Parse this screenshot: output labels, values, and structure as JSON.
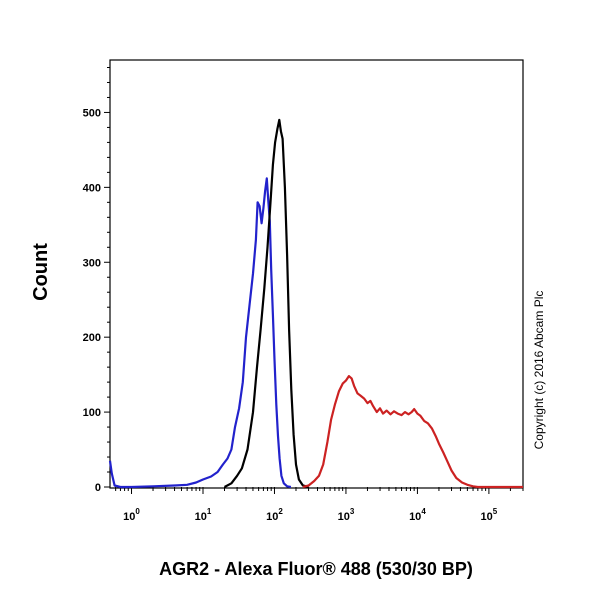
{
  "chart_data": {
    "type": "line",
    "title": "",
    "xlabel": "AGR2 - Alexa Fluor® 488 (530/30 BP)",
    "ylabel": "Count",
    "x_scale": "log",
    "xlim": [
      0.5,
      300000
    ],
    "ylim": [
      0,
      570
    ],
    "grid": false,
    "legend": "none",
    "y_ticks": [
      0,
      100,
      200,
      300,
      400,
      500
    ],
    "x_ticks": [
      {
        "value": 1,
        "base": "10",
        "exp": "0"
      },
      {
        "value": 10,
        "base": "10",
        "exp": "1"
      },
      {
        "value": 100,
        "base": "10",
        "exp": "2"
      },
      {
        "value": 1000,
        "base": "10",
        "exp": "3"
      },
      {
        "value": 10000,
        "base": "10",
        "exp": "4"
      },
      {
        "value": 100000,
        "base": "10",
        "exp": "5"
      }
    ],
    "series": [
      {
        "color": "#2222cc",
        "points": [
          [
            0.5,
            35
          ],
          [
            0.53,
            18
          ],
          [
            0.58,
            2
          ],
          [
            0.7,
            0
          ],
          [
            1,
            0
          ],
          [
            2,
            1
          ],
          [
            4,
            2
          ],
          [
            6,
            3
          ],
          [
            8,
            6
          ],
          [
            10,
            10
          ],
          [
            13,
            14
          ],
          [
            16,
            20
          ],
          [
            19,
            30
          ],
          [
            22,
            38
          ],
          [
            25,
            50
          ],
          [
            28,
            80
          ],
          [
            32,
            105
          ],
          [
            36,
            140
          ],
          [
            40,
            200
          ],
          [
            45,
            245
          ],
          [
            50,
            285
          ],
          [
            55,
            330
          ],
          [
            58,
            380
          ],
          [
            62,
            375
          ],
          [
            66,
            352
          ],
          [
            70,
            372
          ],
          [
            74,
            395
          ],
          [
            78,
            412
          ],
          [
            82,
            382
          ],
          [
            86,
            355
          ],
          [
            90,
            290
          ],
          [
            95,
            230
          ],
          [
            100,
            170
          ],
          [
            106,
            110
          ],
          [
            112,
            68
          ],
          [
            118,
            38
          ],
          [
            125,
            15
          ],
          [
            135,
            5
          ],
          [
            150,
            1
          ],
          [
            170,
            0
          ]
        ]
      },
      {
        "color": "#000000",
        "points": [
          [
            20,
            0
          ],
          [
            25,
            5
          ],
          [
            30,
            15
          ],
          [
            35,
            25
          ],
          [
            42,
            50
          ],
          [
            50,
            100
          ],
          [
            57,
            160
          ],
          [
            64,
            210
          ],
          [
            72,
            265
          ],
          [
            80,
            320
          ],
          [
            88,
            380
          ],
          [
            95,
            430
          ],
          [
            102,
            460
          ],
          [
            110,
            478
          ],
          [
            117,
            490
          ],
          [
            123,
            475
          ],
          [
            130,
            465
          ],
          [
            140,
            400
          ],
          [
            150,
            310
          ],
          [
            160,
            210
          ],
          [
            172,
            130
          ],
          [
            185,
            70
          ],
          [
            200,
            30
          ],
          [
            220,
            10
          ],
          [
            250,
            2
          ],
          [
            300,
            0
          ]
        ]
      },
      {
        "color": "#cc2222",
        "points": [
          [
            250,
            0
          ],
          [
            300,
            2
          ],
          [
            360,
            8
          ],
          [
            420,
            15
          ],
          [
            480,
            30
          ],
          [
            550,
            60
          ],
          [
            620,
            90
          ],
          [
            700,
            110
          ],
          [
            800,
            128
          ],
          [
            900,
            138
          ],
          [
            1000,
            142
          ],
          [
            1100,
            148
          ],
          [
            1200,
            145
          ],
          [
            1300,
            135
          ],
          [
            1450,
            125
          ],
          [
            1600,
            122
          ],
          [
            1800,
            118
          ],
          [
            2000,
            112
          ],
          [
            2200,
            115
          ],
          [
            2400,
            108
          ],
          [
            2700,
            100
          ],
          [
            3000,
            105
          ],
          [
            3300,
            98
          ],
          [
            3700,
            102
          ],
          [
            4200,
            97
          ],
          [
            4700,
            101
          ],
          [
            5300,
            98
          ],
          [
            6000,
            96
          ],
          [
            6700,
            100
          ],
          [
            7500,
            97
          ],
          [
            8300,
            100
          ],
          [
            9000,
            104
          ],
          [
            10000,
            98
          ],
          [
            11000,
            95
          ],
          [
            12500,
            88
          ],
          [
            14000,
            85
          ],
          [
            16000,
            78
          ],
          [
            18000,
            68
          ],
          [
            20000,
            58
          ],
          [
            23000,
            46
          ],
          [
            26000,
            35
          ],
          [
            30000,
            22
          ],
          [
            35000,
            12
          ],
          [
            42000,
            6
          ],
          [
            50000,
            3
          ],
          [
            60000,
            1
          ],
          [
            70000,
            0
          ],
          [
            300000,
            0
          ]
        ]
      }
    ]
  },
  "copyright": "Copyright (c) 2016 Abcam Plc"
}
